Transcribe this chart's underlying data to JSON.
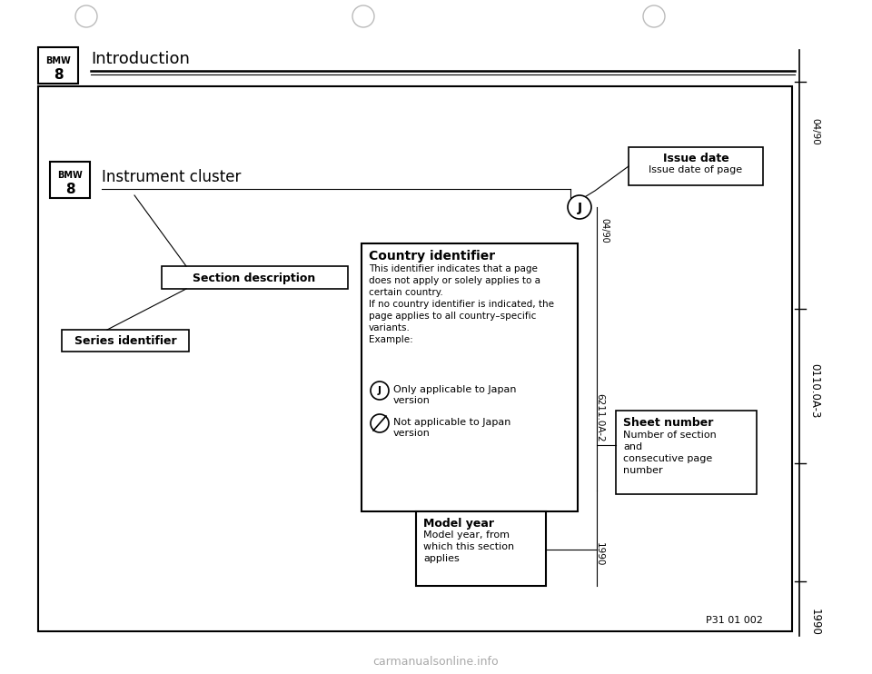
{
  "bg_color": "#ffffff",
  "title_text": "Introduction",
  "right_margin_texts": [
    "04/90",
    "0110.0A-3",
    "1990"
  ],
  "section_header": "Instrument cluster",
  "section_desc_box": "Section description",
  "series_id_box": "Series identifier",
  "issue_date_title": "Issue date",
  "issue_date_desc": "Issue date of page",
  "country_id_title": "Country identifier",
  "country_id_lines": [
    "This identifier indicates that a page",
    "does not apply or solely applies to a",
    "certain country.",
    "If no country identifier is indicated, the",
    "page applies to all country–specific",
    "variants.",
    "Example:"
  ],
  "japan_yes": [
    "Only applicable to Japan",
    "version"
  ],
  "japan_no": [
    "Not applicable to Japan",
    "version"
  ],
  "sheet_number_title": "Sheet number",
  "sheet_number_lines": [
    "Number of section",
    "and",
    "consecutive page",
    "number"
  ],
  "model_year_title": "Model year",
  "model_year_lines": [
    "Model year, from",
    "which this section",
    "applies"
  ],
  "page_code": "6211.0A-2",
  "page_id": "P31 01 002",
  "date_code": "04/90",
  "year_code": "1990",
  "watermark": "carmanualsonline.info"
}
